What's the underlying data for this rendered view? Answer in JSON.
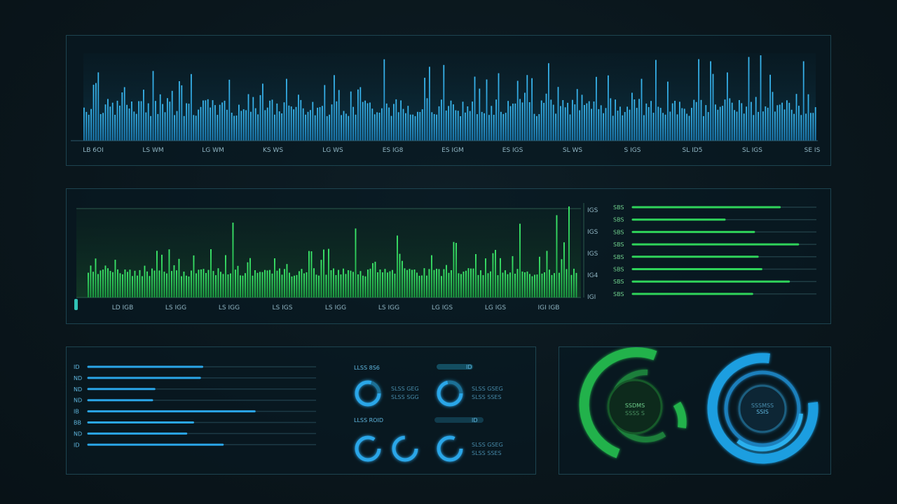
{
  "colors": {
    "background": "#0a161c",
    "panel_border": "#1d4450",
    "blue": "#2aa6e8",
    "green": "#2fd35a",
    "cyan": "#36c6e6"
  },
  "top_chart": {
    "x_labels": [
      "LB 6OI",
      "LS WM",
      "LG WM",
      "KS WS",
      "LG WS",
      "ES IG8",
      "ES IGM",
      "ES IGS",
      "SL WS",
      "S IGS",
      "SL ID5",
      "SL IGS",
      "SE IS"
    ]
  },
  "mid_chart": {
    "x_labels": [
      "LD IGB",
      "LS IGG",
      "LS IGG",
      "LS IGS",
      "LS IGG",
      "LS IGG",
      "LG IGS",
      "LG IGS",
      "IGI IGB"
    ],
    "y_labels": [
      "IGS",
      "IGS",
      "IGS",
      "IG4",
      "IGI"
    ]
  },
  "mid_bars": {
    "labels": [
      "SBS",
      "SBS",
      "SBS",
      "SBS",
      "SBS",
      "SBS",
      "SBS",
      "SBS"
    ],
    "values": [
      0.8,
      0.5,
      0.66,
      0.9,
      0.68,
      0.7,
      0.85,
      0.65
    ]
  },
  "bl_bars": {
    "labels": [
      "ID",
      "ND",
      "ND",
      "ND",
      "IB",
      "BB",
      "ND",
      "ID"
    ],
    "values": [
      0.5,
      0.49,
      0.29,
      0.28,
      0.73,
      0.46,
      0.43,
      0.59
    ]
  },
  "mini_stats": {
    "header_left_1": "LLSS 8S6",
    "header_left_2": "LLSS ROID",
    "header_right_1": "ID",
    "header_right_2": "ID",
    "row_text_a": "SLSS GEG",
    "row_text_b": "SLSS SGG",
    "row_text_c": "SLSS GSEG",
    "row_text_d": "SLSS SSES"
  },
  "ring_gauges": {
    "green_label": "SSDMS",
    "green_sublabel": "SSSS S",
    "blue_label": "SSIS",
    "blue_sublabel": "SSSMSS"
  }
}
